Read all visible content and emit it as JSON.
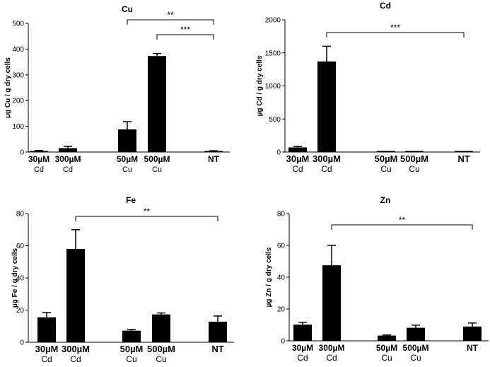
{
  "chart_data": [
    {
      "type": "bar",
      "title": "Cu",
      "ylabel": "µg Cu / g dry cells",
      "ylim": [
        0,
        500
      ],
      "yticks": [
        0,
        100,
        200,
        300,
        400,
        500
      ],
      "categories": [
        {
          "line1": "30µM",
          "line2": "Cd"
        },
        {
          "line1": "300µM",
          "line2": "Cd"
        },
        {
          "line1": "50µM",
          "line2": "Cu"
        },
        {
          "line1": "500µM",
          "line2": "Cu"
        },
        {
          "line1": "NT",
          "line2": ""
        }
      ],
      "values": [
        4,
        15,
        88,
        373,
        3
      ],
      "errors": [
        2,
        7,
        30,
        10,
        2
      ],
      "significance": [
        {
          "from": 2,
          "to": 4,
          "label": "**"
        },
        {
          "from": 3,
          "to": 4,
          "label": "***"
        }
      ]
    },
    {
      "type": "bar",
      "title": "Cd",
      "ylabel": "µg Cd / g dry cells",
      "ylim": [
        0,
        2000
      ],
      "yticks": [
        0,
        500,
        1000,
        1500,
        2000
      ],
      "categories": [
        {
          "line1": "30µM",
          "line2": "Cd"
        },
        {
          "line1": "300µM",
          "line2": "Cd"
        },
        {
          "line1": "50µM",
          "line2": "Cu"
        },
        {
          "line1": "500µM",
          "line2": "Cu"
        },
        {
          "line1": "NT",
          "line2": ""
        }
      ],
      "values": [
        70,
        1370,
        0,
        2,
        2
      ],
      "errors": [
        15,
        230,
        0,
        1,
        1
      ],
      "significance": [
        {
          "from": 1,
          "to": 4,
          "label": "***"
        }
      ]
    },
    {
      "type": "bar",
      "title": "Fe",
      "ylabel": "µg Fe / g dry cells",
      "ylim": [
        0,
        80
      ],
      "yticks": [
        0,
        20,
        40,
        60,
        80
      ],
      "categories": [
        {
          "line1": "30µM",
          "line2": "Cd"
        },
        {
          "line1": "300µM",
          "line2": "Cd"
        },
        {
          "line1": "50µM",
          "line2": "Cu"
        },
        {
          "line1": "500µM",
          "line2": "Cu"
        },
        {
          "line1": "NT",
          "line2": ""
        }
      ],
      "values": [
        15.5,
        58,
        7.2,
        17.3,
        12.8
      ],
      "errors": [
        3,
        12,
        0.8,
        0.9,
        3.5
      ],
      "significance": [
        {
          "from": 1,
          "to": 4,
          "label": "**"
        }
      ]
    },
    {
      "type": "bar",
      "title": "Zn",
      "ylabel": "µg Zn / g dry cells",
      "ylim": [
        0,
        80
      ],
      "yticks": [
        0,
        20,
        40,
        60,
        80
      ],
      "categories": [
        {
          "line1": "30µM",
          "line2": "Cd"
        },
        {
          "line1": "300µM",
          "line2": "Cd"
        },
        {
          "line1": "50µM",
          "line2": "Cu"
        },
        {
          "line1": "500µM",
          "line2": "Cu"
        },
        {
          "line1": "NT",
          "line2": ""
        }
      ],
      "values": [
        10.2,
        47.5,
        3.3,
        8.2,
        9
      ],
      "errors": [
        1.5,
        12.5,
        0.4,
        1.7,
        2.2
      ],
      "significance": [
        {
          "from": 1,
          "to": 4,
          "label": "**"
        }
      ]
    }
  ]
}
